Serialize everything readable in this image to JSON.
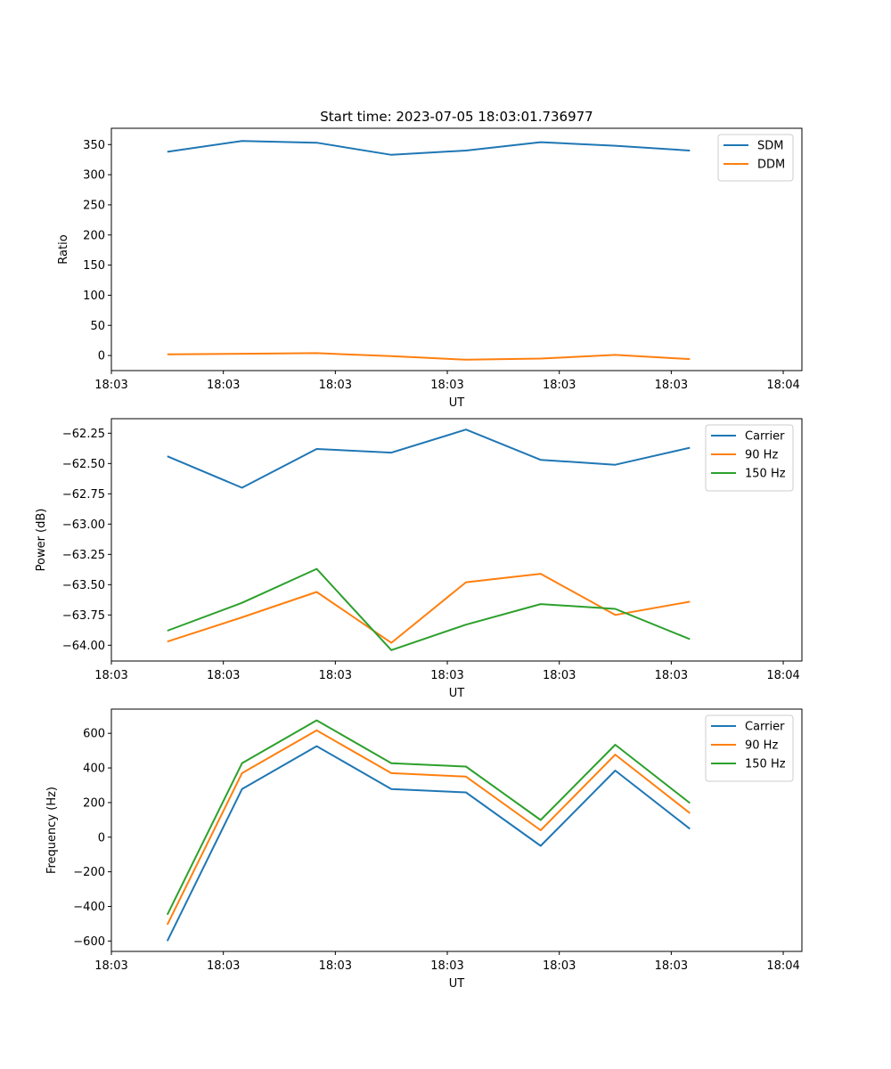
{
  "chart_data": [
    {
      "type": "line",
      "title": "Start time: 2023-07-05 18:03:01.736977",
      "xlabel": "UT",
      "ylabel": "Ratio",
      "xlim": [
        -0.75,
        8.5
      ],
      "ylim": [
        -25,
        377
      ],
      "x": [
        0,
        1,
        2,
        3,
        4,
        5,
        6,
        7
      ],
      "x_ticks": [
        -0.75,
        0.75,
        2.25,
        3.75,
        5.25,
        6.75,
        8.25
      ],
      "x_tick_labels": [
        "18:03",
        "18:03",
        "18:03",
        "18:03",
        "18:03",
        "18:03",
        "18:04"
      ],
      "y_ticks": [
        0,
        50,
        100,
        150,
        200,
        250,
        300,
        350
      ],
      "y_tick_labels": [
        "0",
        "50",
        "100",
        "150",
        "200",
        "250",
        "300",
        "350"
      ],
      "legend": "top-right",
      "series": [
        {
          "name": "SDM",
          "color": "#1f77b4",
          "values": [
            338,
            356,
            353,
            333,
            340,
            354,
            348,
            340
          ]
        },
        {
          "name": "DDM",
          "color": "#ff7f0e",
          "values": [
            2,
            3,
            4,
            -1,
            -7,
            -5,
            1,
            -6
          ]
        }
      ]
    },
    {
      "type": "line",
      "title": "",
      "xlabel": "UT",
      "ylabel": "Power (dB)",
      "xlim": [
        -0.75,
        8.5
      ],
      "ylim": [
        -64.13,
        -62.13
      ],
      "x": [
        0,
        1,
        2,
        3,
        4,
        5,
        6,
        7
      ],
      "x_ticks": [
        -0.75,
        0.75,
        2.25,
        3.75,
        5.25,
        6.75,
        8.25
      ],
      "x_tick_labels": [
        "18:03",
        "18:03",
        "18:03",
        "18:03",
        "18:03",
        "18:03",
        "18:04"
      ],
      "y_ticks": [
        -64.0,
        -63.75,
        -63.5,
        -63.25,
        -63.0,
        -62.75,
        -62.5,
        -62.25
      ],
      "y_tick_labels": [
        "−64.00",
        "−63.75",
        "−63.50",
        "−63.25",
        "−63.00",
        "−62.75",
        "−62.50",
        "−62.25"
      ],
      "legend": "top-right",
      "series": [
        {
          "name": "Carrier",
          "color": "#1f77b4",
          "values": [
            -62.44,
            -62.7,
            -62.38,
            -62.41,
            -62.22,
            -62.47,
            -62.51,
            -62.37
          ]
        },
        {
          "name": "90 Hz",
          "color": "#ff7f0e",
          "values": [
            -63.97,
            -63.77,
            -63.56,
            -63.98,
            -63.48,
            -63.41,
            -63.75,
            -63.64
          ]
        },
        {
          "name": "150 Hz",
          "color": "#2ca02c",
          "values": [
            -63.88,
            -63.65,
            -63.37,
            -64.04,
            -63.83,
            -63.66,
            -63.7,
            -63.95
          ]
        }
      ]
    },
    {
      "type": "line",
      "title": "",
      "xlabel": "UT",
      "ylabel": "Frequency (Hz)",
      "xlim": [
        -0.75,
        8.5
      ],
      "ylim": [
        -660,
        740
      ],
      "x": [
        0,
        1,
        2,
        3,
        4,
        5,
        6,
        7
      ],
      "x_ticks": [
        -0.75,
        0.75,
        2.25,
        3.75,
        5.25,
        6.75,
        8.25
      ],
      "x_tick_labels": [
        "18:03",
        "18:03",
        "18:03",
        "18:03",
        "18:03",
        "18:03",
        "18:04"
      ],
      "y_ticks": [
        -600,
        -400,
        -200,
        0,
        200,
        400,
        600
      ],
      "y_tick_labels": [
        "−600",
        "−400",
        "−200",
        "0",
        "200",
        "400",
        "600"
      ],
      "legend": "top-right",
      "series": [
        {
          "name": "Carrier",
          "color": "#1f77b4",
          "values": [
            -600,
            278,
            526,
            278,
            259,
            -50,
            385,
            48
          ]
        },
        {
          "name": "90 Hz",
          "color": "#ff7f0e",
          "values": [
            -505,
            370,
            617,
            370,
            350,
            40,
            477,
            139
          ]
        },
        {
          "name": "150 Hz",
          "color": "#2ca02c",
          "values": [
            -448,
            427,
            675,
            427,
            408,
            99,
            534,
            197
          ]
        }
      ]
    }
  ]
}
